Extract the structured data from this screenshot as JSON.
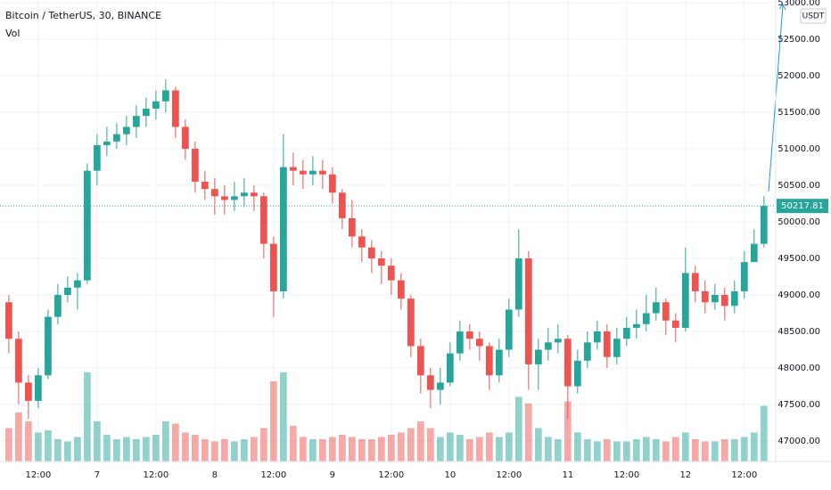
{
  "chart_data": {
    "type": "candlestick",
    "title": "Bitcoin / TetherUS, 30, BINANCE",
    "volume_label": "Vol",
    "currency": "USDT",
    "x": [
      6,
      8,
      10,
      12,
      14,
      16,
      18,
      20,
      22,
      24,
      26,
      28,
      30,
      32,
      34,
      36,
      38,
      40,
      42,
      44,
      46,
      48,
      50,
      52,
      54,
      56,
      58,
      60,
      62,
      64,
      66,
      68,
      70,
      72,
      74,
      76,
      78,
      80,
      82,
      84,
      86,
      88,
      90,
      92,
      94,
      96,
      98,
      100,
      102,
      104,
      106,
      108,
      110,
      112,
      114,
      116,
      118,
      120,
      122,
      124,
      126,
      128,
      130,
      132,
      134,
      136,
      138,
      140,
      142,
      144,
      146,
      148,
      150,
      152,
      154,
      156,
      158,
      160
    ],
    "open": [
      48900,
      48400,
      47800,
      47550,
      47900,
      48700,
      49000,
      49100,
      49200,
      50700,
      51050,
      51100,
      51200,
      51300,
      51450,
      51550,
      51650,
      51800,
      51300,
      51000,
      50550,
      50450,
      50350,
      50300,
      50350,
      50400,
      50350,
      49700,
      49050,
      50750,
      50700,
      50650,
      50700,
      50650,
      50400,
      50050,
      49800,
      49650,
      49500,
      49400,
      49200,
      48950,
      48300,
      47900,
      47700,
      47800,
      48200,
      48500,
      48400,
      48300,
      47900,
      48250,
      48800,
      49500,
      48050,
      48250,
      48350,
      48400,
      47750,
      48100,
      48350,
      48500,
      48150,
      48400,
      48550,
      48600,
      48750,
      48900,
      48650,
      48550,
      49300,
      49050,
      48900,
      49000,
      48850,
      49050,
      49450,
      49700
    ],
    "high": [
      49000,
      48500,
      47900,
      48000,
      48800,
      49150,
      49250,
      49300,
      50800,
      51200,
      51300,
      51350,
      51450,
      51600,
      51700,
      51800,
      51950,
      51850,
      51400,
      51100,
      50700,
      50600,
      50500,
      50550,
      50600,
      50500,
      50400,
      49800,
      51200,
      50950,
      50850,
      50900,
      50850,
      50750,
      50450,
      50300,
      49900,
      49750,
      49600,
      49500,
      49300,
      49000,
      48400,
      48000,
      48000,
      48350,
      48650,
      48600,
      48500,
      48350,
      48400,
      48950,
      49900,
      49600,
      48400,
      48550,
      48600,
      48450,
      48250,
      48500,
      48650,
      48600,
      48550,
      48700,
      48800,
      49000,
      49100,
      48950,
      48750,
      49650,
      49400,
      49200,
      49150,
      49100,
      49200,
      49600,
      49900,
      50350
    ],
    "low": [
      48200,
      47500,
      47300,
      47450,
      47850,
      48600,
      48900,
      48800,
      49150,
      50500,
      50900,
      51000,
      51050,
      51150,
      51300,
      51400,
      51500,
      51150,
      50850,
      50400,
      50300,
      50100,
      50100,
      50150,
      50200,
      50150,
      49500,
      48700,
      48950,
      50500,
      50450,
      50500,
      50450,
      50250,
      49900,
      49650,
      49450,
      49300,
      49150,
      49000,
      48800,
      48150,
      47650,
      47450,
      47500,
      47750,
      48100,
      48250,
      48100,
      47700,
      47800,
      48150,
      48700,
      47700,
      47700,
      48100,
      48200,
      47300,
      47650,
      48000,
      48250,
      48000,
      48050,
      48300,
      48400,
      48500,
      48650,
      48450,
      48350,
      48500,
      48900,
      48750,
      48800,
      48650,
      48750,
      48950,
      49500,
      49650
    ],
    "close": [
      48400,
      47800,
      47550,
      47900,
      48700,
      49000,
      49100,
      49200,
      50700,
      51050,
      51100,
      51200,
      51300,
      51450,
      51550,
      51650,
      51800,
      51300,
      51000,
      50550,
      50450,
      50350,
      50300,
      50350,
      50400,
      50350,
      49700,
      49050,
      50750,
      50700,
      50650,
      50700,
      50650,
      50400,
      50050,
      49800,
      49650,
      49500,
      49400,
      49200,
      48950,
      48300,
      47900,
      47700,
      47800,
      48200,
      48500,
      48400,
      48300,
      47900,
      48250,
      48800,
      49500,
      48050,
      48250,
      48350,
      48400,
      47750,
      48100,
      48350,
      48500,
      48150,
      48400,
      48550,
      48600,
      48750,
      48900,
      48650,
      48550,
      49300,
      49050,
      48900,
      49000,
      48850,
      49050,
      49450,
      49700,
      50217.81
    ],
    "volume": [
      1500,
      2200,
      1800,
      1300,
      1400,
      1000,
      900,
      1100,
      4000,
      1800,
      1200,
      1000,
      1100,
      1000,
      1100,
      1200,
      1800,
      1700,
      1300,
      1200,
      1000,
      900,
      1000,
      900,
      1000,
      1100,
      1500,
      3600,
      4000,
      1600,
      1100,
      1000,
      1000,
      1100,
      1200,
      1100,
      1000,
      1000,
      1100,
      1200,
      1300,
      1500,
      1800,
      1500,
      1100,
      1300,
      1200,
      1000,
      1100,
      1300,
      1100,
      1300,
      2900,
      2600,
      1500,
      1100,
      1000,
      2700,
      1300,
      1000,
      900,
      1000,
      900,
      900,
      1000,
      1100,
      1000,
      900,
      1100,
      1300,
      1000,
      900,
      900,
      1000,
      1000,
      1100,
      1300,
      2500
    ],
    "up_color": "#26a69a",
    "down_color": "#ef5350",
    "xlim": [
      4.2,
      162.4
    ],
    "xticks": [
      {
        "value": 12,
        "label": "12:00"
      },
      {
        "value": 24,
        "label": "7"
      },
      {
        "value": 36,
        "label": "12:00"
      },
      {
        "value": 48,
        "label": "8"
      },
      {
        "value": 60,
        "label": "12:00"
      },
      {
        "value": 72,
        "label": "9"
      },
      {
        "value": 84,
        "label": "12:00"
      },
      {
        "value": 96,
        "label": "10"
      },
      {
        "value": 108,
        "label": "12:00"
      },
      {
        "value": 120,
        "label": "11"
      },
      {
        "value": 132,
        "label": "12:00"
      },
      {
        "value": 144,
        "label": "12"
      },
      {
        "value": 156,
        "label": "12:00"
      }
    ],
    "ylim": [
      46720,
      53037
    ],
    "yticks": [
      {
        "value": 47000,
        "label": "47000.00"
      },
      {
        "value": 47500,
        "label": "47500.00"
      },
      {
        "value": 48000,
        "label": "48000.00"
      },
      {
        "value": 48500,
        "label": "48500.00"
      },
      {
        "value": 49000,
        "label": "49000.00"
      },
      {
        "value": 49500,
        "label": "49500.00"
      },
      {
        "value": 50000,
        "label": "50000.00"
      },
      {
        "value": 50500,
        "label": "50500.00"
      },
      {
        "value": 51000,
        "label": "51000.00"
      },
      {
        "value": 51500,
        "label": "51500.00"
      },
      {
        "value": 52000,
        "label": "52000.00"
      },
      {
        "value": 52500,
        "label": "52500.00"
      },
      {
        "value": 53000,
        "label": "53000.00"
      }
    ],
    "vlim": [
      0,
      5000
    ],
    "grid": true
  }
}
